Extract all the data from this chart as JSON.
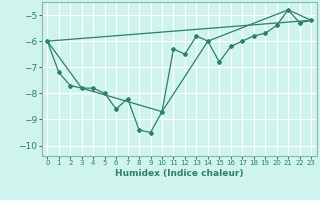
{
  "xlabel": "Humidex (Indice chaleur)",
  "background_color": "#cff4ee",
  "grid_color": "#ffffff",
  "line_color": "#2e7d6e",
  "spine_color": "#8ab8b0",
  "xlim": [
    -0.5,
    23.5
  ],
  "ylim": [
    -10.4,
    -4.5
  ],
  "xticks": [
    0,
    1,
    2,
    3,
    4,
    5,
    6,
    7,
    8,
    9,
    10,
    11,
    12,
    13,
    14,
    15,
    16,
    17,
    18,
    19,
    20,
    21,
    22,
    23
  ],
  "yticks": [
    -10,
    -9,
    -8,
    -7,
    -6,
    -5
  ],
  "series1": {
    "x": [
      0,
      1,
      2,
      3,
      4,
      5,
      6,
      7,
      8,
      9,
      10,
      11,
      12,
      13,
      14,
      15,
      16,
      17,
      18,
      19,
      20,
      21,
      22,
      23
    ],
    "y": [
      -6.0,
      -7.2,
      -7.7,
      -7.8,
      -7.8,
      -8.0,
      -8.6,
      -8.2,
      -9.4,
      -9.5,
      -8.7,
      -6.3,
      -6.5,
      -5.8,
      -6.0,
      -6.8,
      -6.2,
      -6.0,
      -5.8,
      -5.7,
      -5.4,
      -4.8,
      -5.3,
      -5.2
    ]
  },
  "series2": {
    "x": [
      0,
      3,
      10,
      14,
      21,
      23
    ],
    "y": [
      -6.0,
      -7.8,
      -8.7,
      -6.0,
      -4.8,
      -5.2
    ]
  },
  "series3": {
    "x": [
      0,
      23
    ],
    "y": [
      -6.0,
      -5.2
    ]
  }
}
